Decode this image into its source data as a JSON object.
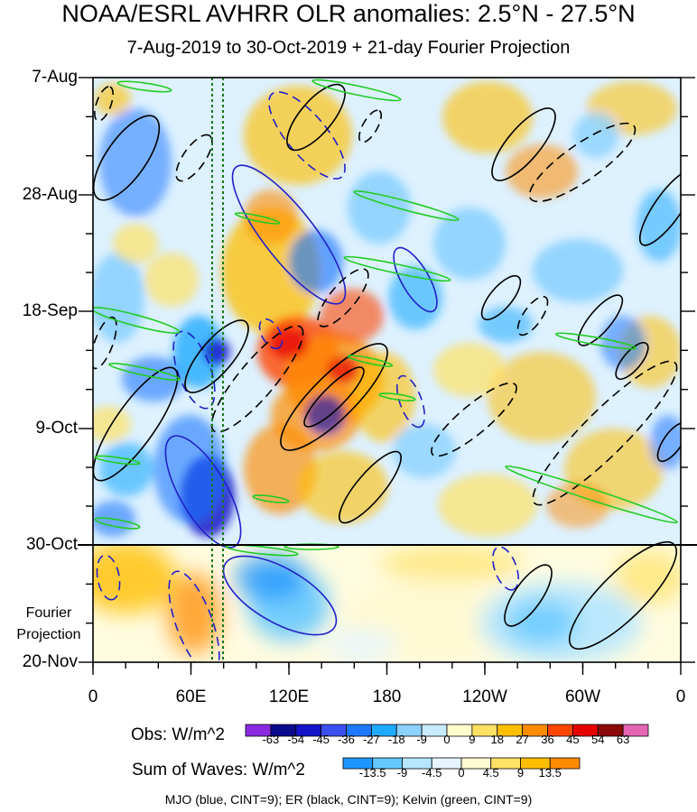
{
  "header": {
    "title": "NOAA/ESRL AVHRR OLR anomalies: 2.5°N - 27.5°N",
    "subtitle": "7-Aug-2019 to 30-Oct-2019 + 21-day Fourier Projection"
  },
  "chart_data": {
    "type": "heatmap",
    "x_axis": {
      "ticks": [
        "0",
        "60E",
        "120E",
        "180",
        "120W",
        "60W",
        "0"
      ]
    },
    "y_axis": {
      "ticks": [
        "7-Aug",
        "28-Aug",
        "18-Sep",
        "9-Oct",
        "30-Oct",
        "20-Nov"
      ]
    },
    "projection_label": "Fourier\nProjection",
    "obs_colorbar": {
      "title": "Obs: W/m^2",
      "levels": [
        "-63",
        "-54",
        "-45",
        "-36",
        "-27",
        "-18",
        "-9",
        "0",
        "9",
        "18",
        "27",
        "36",
        "45",
        "54",
        "63"
      ],
      "colors": [
        "#8a2be2",
        "#0a0a8c",
        "#1414c8",
        "#3c50f0",
        "#1e78ff",
        "#1eaaff",
        "#8cd2ff",
        "#c8ebff",
        "#ffffcc",
        "#ffe164",
        "#ffbe00",
        "#ff8c00",
        "#ff4600",
        "#e60000",
        "#8c0a0a",
        "#e664b4"
      ]
    },
    "waves_colorbar": {
      "title": "Sum of Waves: W/m^2",
      "levels": [
        "-13.5",
        "-9",
        "-4.5",
        "0",
        "4.5",
        "9",
        "13.5"
      ],
      "colors": [
        "#1e96ff",
        "#64c8ff",
        "#b4e6ff",
        "#e6f5ff",
        "#fffad2",
        "#ffe164",
        "#ffbe00",
        "#ff8c00"
      ]
    },
    "legend_text": "MJO (blue, CINT=9); ER (black, CINT=9); Kelvin (green, CINT=9)"
  }
}
